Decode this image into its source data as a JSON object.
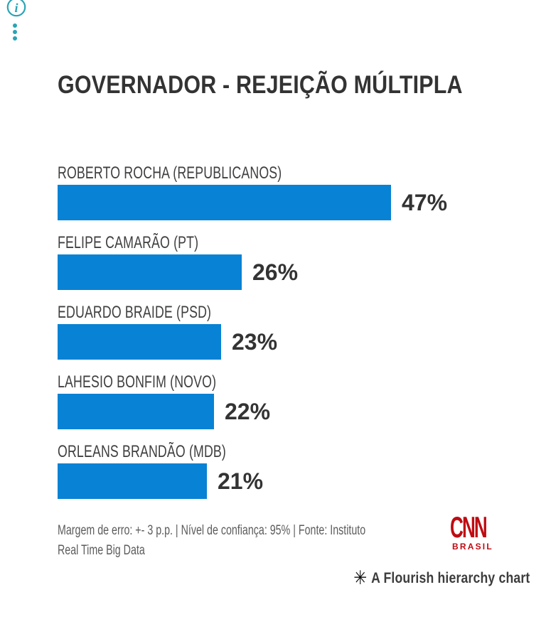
{
  "controls": {
    "accent_color": "#2aa4b5",
    "info_icon_glyph": "i",
    "menu_icon": "vertical-dots"
  },
  "chart_data": {
    "type": "bar",
    "orientation": "horizontal",
    "title": "GOVERNADOR - REJEIÇÃO MÚLTIPLA",
    "categories": [
      "ROBERTO ROCHA (REPUBLICANOS)",
      "FELIPE CAMARÃO (PT)",
      "EDUARDO BRAIDE (PSD)",
      "LAHESIO BONFIM (NOVO)",
      "ORLEANS BRANDÃO (MDB)"
    ],
    "values": [
      47,
      26,
      23,
      22,
      21
    ],
    "value_labels": [
      "47%",
      "26%",
      "23%",
      "22%",
      "21%"
    ],
    "xlim": [
      0,
      47
    ],
    "bar_color": "#0882d4",
    "grid": false,
    "legend": false,
    "value_label_position": "right-of-bar",
    "category_label_position": "above-bar"
  },
  "footer": {
    "lines": [
      "Margem de erro: +- 3 p.p. | Nível de confiança: 95% | Fonte: Instituto",
      "Real Time Big Data"
    ]
  },
  "branding": {
    "logo_text": "CNN",
    "logo_subtext": "BRASIL",
    "logo_color": "#bf0b12"
  },
  "attribution": {
    "icon_glyph": "✳",
    "text": "A Flourish hierarchy chart"
  }
}
